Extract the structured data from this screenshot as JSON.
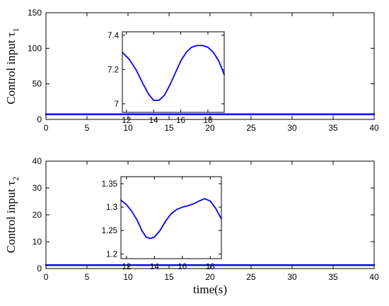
{
  "chart_data": [
    {
      "type": "line",
      "ylabel": "Control input τ",
      "ylabel_sub": "1",
      "xlabel": "",
      "xlim": [
        0,
        40
      ],
      "ylim": [
        0,
        150
      ],
      "xticks": [
        0,
        5,
        10,
        15,
        20,
        25,
        30,
        35,
        40
      ],
      "yticks": [
        0,
        50,
        100,
        150
      ],
      "grid": false,
      "series": [
        {
          "x": [
            0,
            40
          ],
          "y": [
            7.2,
            7.2
          ]
        }
      ],
      "inset": {
        "type": "line",
        "xlim": [
          11.7,
          19.2
        ],
        "ylim": [
          6.95,
          7.42
        ],
        "xticks": [
          12,
          14,
          16,
          18
        ],
        "yticks": [
          7,
          7.2,
          7.4
        ],
        "series": [
          {
            "x": [
              11.7,
              12.2,
              12.7,
              13.2,
              13.6,
              14.0,
              14.4,
              14.8,
              15.2,
              15.6,
              16.0,
              16.4,
              16.8,
              17.2,
              17.6,
              18.0,
              18.4,
              18.8,
              19.2
            ],
            "y": [
              7.3,
              7.26,
              7.2,
              7.12,
              7.06,
              7.02,
              7.02,
              7.05,
              7.11,
              7.18,
              7.25,
              7.3,
              7.33,
              7.34,
              7.34,
              7.33,
              7.3,
              7.25,
              7.17
            ]
          }
        ]
      }
    },
    {
      "type": "line",
      "ylabel": "Control input τ",
      "ylabel_sub": "2",
      "xlabel": "time(s)",
      "xlim": [
        0,
        40
      ],
      "ylim": [
        0,
        40
      ],
      "xticks": [
        0,
        5,
        10,
        15,
        20,
        25,
        30,
        35,
        40
      ],
      "yticks": [
        0,
        10,
        20,
        30,
        40
      ],
      "grid": false,
      "series": [
        {
          "x": [
            0,
            40
          ],
          "y": [
            1.28,
            1.28
          ]
        }
      ],
      "inset": {
        "type": "line",
        "xlim": [
          11.6,
          18.8
        ],
        "ylim": [
          1.19,
          1.365
        ],
        "xticks": [
          12,
          14,
          16,
          18
        ],
        "yticks": [
          1.2,
          1.25,
          1.3,
          1.35
        ],
        "series": [
          {
            "x": [
              11.6,
              12.0,
              12.4,
              12.8,
              13.1,
              13.4,
              13.7,
              14.0,
              14.4,
              14.8,
              15.2,
              15.6,
              16.0,
              16.4,
              16.8,
              17.2,
              17.6,
              18.0,
              18.4,
              18.8
            ],
            "y": [
              1.315,
              1.305,
              1.29,
              1.27,
              1.25,
              1.236,
              1.233,
              1.236,
              1.25,
              1.27,
              1.286,
              1.295,
              1.3,
              1.303,
              1.307,
              1.313,
              1.318,
              1.313,
              1.297,
              1.275
            ]
          }
        ]
      }
    }
  ]
}
